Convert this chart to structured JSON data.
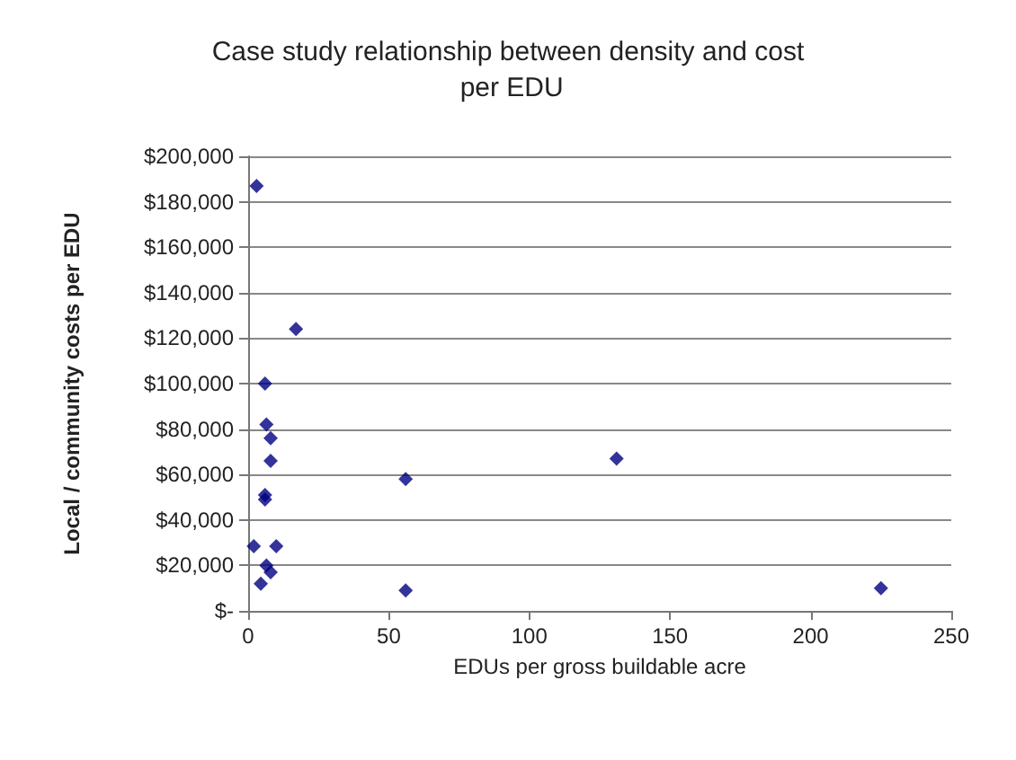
{
  "chart_data": {
    "type": "scatter",
    "title": "Case study relationship between density and cost per EDU",
    "xlabel": "EDUs per gross buildable acre",
    "ylabel": "Local / community costs per EDU",
    "marker": "diamond",
    "grid": "y",
    "x": [
      3,
      17,
      6,
      6.5,
      8,
      8,
      6,
      6,
      2,
      10,
      6.5,
      8,
      4.5,
      56,
      56,
      131,
      225
    ],
    "values": [
      187000,
      124000,
      100000,
      82000,
      76000,
      66000,
      51000,
      49000,
      28500,
      28500,
      20000,
      17000,
      12000,
      9000,
      58000,
      67000,
      10000
    ],
    "color": "#00007f",
    "xlim": [
      0,
      250
    ],
    "xticks": [
      0,
      50,
      100,
      150,
      200,
      250
    ],
    "ylim": [
      0,
      200000
    ],
    "yticks": [
      {
        "value": 0,
        "label": "$-"
      },
      {
        "value": 20000,
        "label": "$20,000"
      },
      {
        "value": 40000,
        "label": "$40,000"
      },
      {
        "value": 60000,
        "label": "$60,000"
      },
      {
        "value": 80000,
        "label": "$80,000"
      },
      {
        "value": 100000,
        "label": "$100,000"
      },
      {
        "value": 120000,
        "label": "$120,000"
      },
      {
        "value": 140000,
        "label": "$140,000"
      },
      {
        "value": 160000,
        "label": "$160,000"
      },
      {
        "value": 180000,
        "label": "$180,000"
      },
      {
        "value": 200000,
        "label": "$200,000"
      }
    ]
  }
}
